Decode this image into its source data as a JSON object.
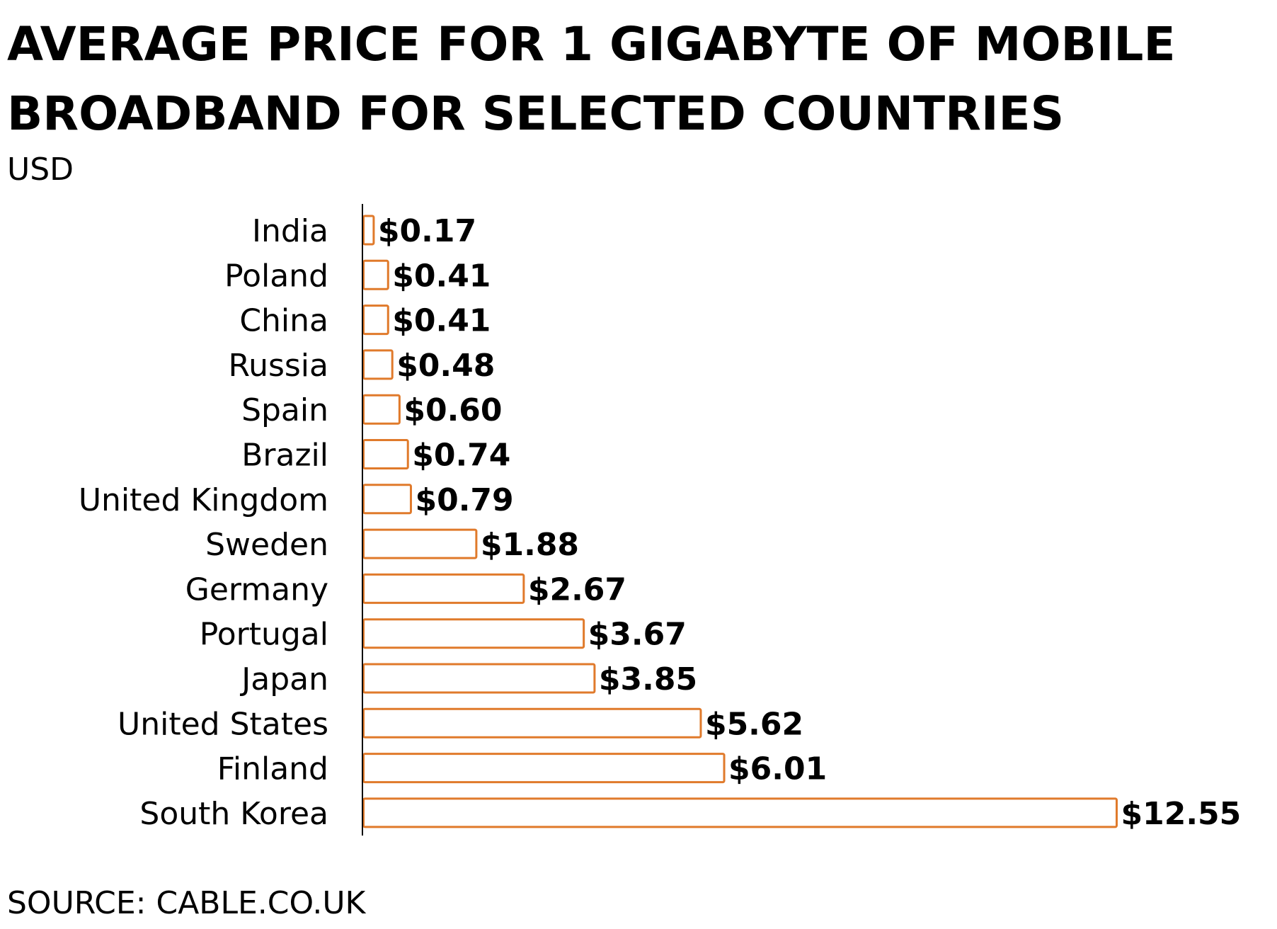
{
  "title": "AVERAGE PRICE FOR 1 GIGABYTE OF MOBILE BROADBAND FOR SELECTED COUNTRIES",
  "unit_label": "USD",
  "source": "SOURCE: CABLE.CO.UK",
  "colors": {
    "bar_stroke": "#e07a2b",
    "bar_fill": "#ffffff",
    "axis": "#000000",
    "text": "#000000"
  },
  "chart_data": {
    "type": "bar",
    "orientation": "horizontal",
    "title": "AVERAGE PRICE FOR 1 GIGABYTE OF MOBILE BROADBAND FOR SELECTED COUNTRIES",
    "subtitle": "USD",
    "xlabel": "",
    "ylabel": "",
    "grid": false,
    "categories": [
      "India",
      "Poland",
      "China",
      "Russia",
      "Spain",
      "Brazil",
      "United Kingdom",
      "Sweden",
      "Germany",
      "Portugal",
      "Japan",
      "United States",
      "Finland",
      "South Korea"
    ],
    "values": [
      0.17,
      0.41,
      0.41,
      0.48,
      0.6,
      0.74,
      0.79,
      1.88,
      2.67,
      3.67,
      3.85,
      5.62,
      6.01,
      12.55
    ],
    "value_labels": [
      "$0.17",
      "$0.41",
      "$0.41",
      "$0.48",
      "$0.60",
      "$0.74",
      "$0.79",
      "$1.88",
      "$2.67",
      "$3.67",
      "$3.85",
      "$5.62",
      "$6.01",
      "$12.55"
    ],
    "xlim": [
      0,
      12.55
    ]
  }
}
